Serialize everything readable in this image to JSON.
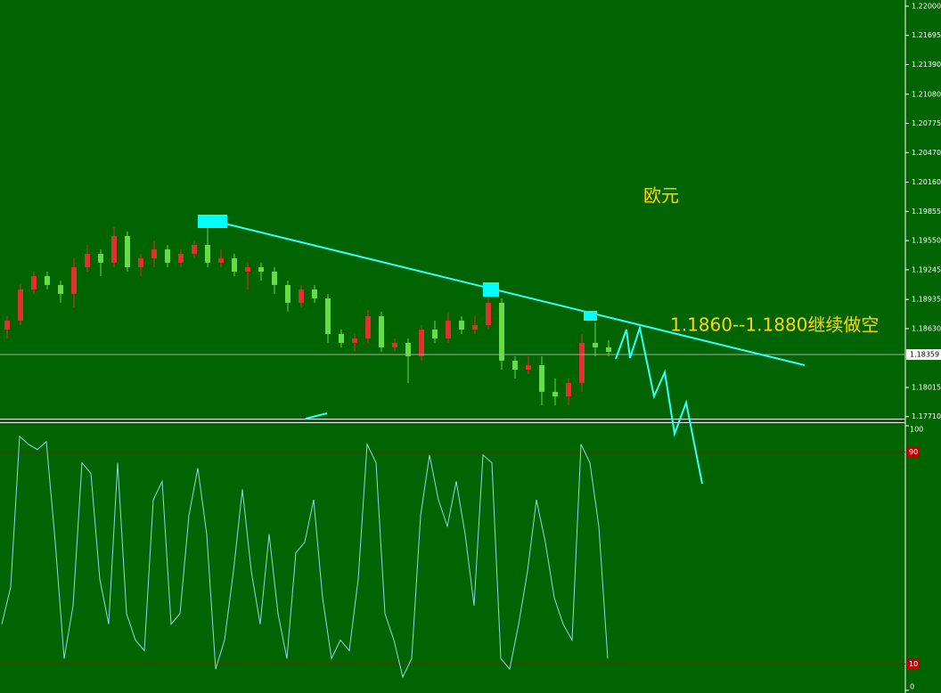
{
  "chart_data": [
    {
      "type": "candlestick",
      "annotations": [
        "欧元",
        "1.1860--1.1880继续做空"
      ],
      "up_color": "#e03030",
      "down_color": "#66dd44",
      "open": [
        1.1862,
        1.18714,
        1.19039,
        1.19179,
        1.19086,
        1.18993,
        1.19272,
        1.19412,
        1.19319,
        1.19598,
        1.19272,
        1.19365,
        1.19458,
        1.19319,
        1.19412,
        1.19505,
        1.19319,
        1.19365,
        1.19225,
        1.19272,
        1.19225,
        1.19086,
        1.189,
        1.19039,
        1.18946,
        1.18574,
        1.18481,
        1.18527,
        1.1876,
        1.18434,
        1.18481,
        1.18341,
        1.1862,
        1.18527,
        1.18714,
        1.1862,
        1.18667,
        1.189,
        1.18295,
        1.18201,
        1.18248,
        1.17969,
        1.17922,
        1.18062,
        1.18481,
        1.18434
      ],
      "high": [
        1.1876,
        1.19104,
        1.19225,
        1.19225,
        1.19132,
        1.19365,
        1.19505,
        1.19458,
        1.19691,
        1.19645,
        1.19412,
        1.19551,
        1.19505,
        1.19458,
        1.19551,
        1.19738,
        1.19458,
        1.19412,
        1.19319,
        1.19319,
        1.19272,
        1.19132,
        1.19086,
        1.19086,
        1.18993,
        1.1862,
        1.18574,
        1.18826,
        1.18807,
        1.18527,
        1.18527,
        1.18667,
        1.18714,
        1.18807,
        1.1876,
        1.1876,
        1.18946,
        1.18946,
        1.18341,
        1.18341,
        1.18341,
        1.18108,
        1.18108,
        1.18574,
        1.18695,
        1.18509
      ],
      "low": [
        1.18527,
        1.18667,
        1.18993,
        1.19039,
        1.189,
        1.18853,
        1.19225,
        1.19179,
        1.19272,
        1.19225,
        1.19179,
        1.19272,
        1.19272,
        1.19272,
        1.19365,
        1.19272,
        1.19272,
        1.19179,
        1.19039,
        1.19132,
        1.18993,
        1.18807,
        1.18853,
        1.189,
        1.18481,
        1.18434,
        1.18388,
        1.18481,
        1.18388,
        1.18388,
        1.18062,
        1.18295,
        1.18481,
        1.18481,
        1.18574,
        1.18574,
        1.1862,
        1.18201,
        1.18108,
        1.18155,
        1.17829,
        1.17829,
        1.17829,
        1.17969,
        1.18341,
        1.18341
      ],
      "close": [
        1.18714,
        1.19039,
        1.19179,
        1.19086,
        1.18993,
        1.19272,
        1.19412,
        1.19319,
        1.19598,
        1.19272,
        1.19365,
        1.19458,
        1.19319,
        1.19412,
        1.19505,
        1.19319,
        1.19365,
        1.19225,
        1.19272,
        1.19225,
        1.19086,
        1.189,
        1.19039,
        1.18946,
        1.18574,
        1.18481,
        1.18527,
        1.1876,
        1.18434,
        1.18481,
        1.18341,
        1.1862,
        1.18527,
        1.18714,
        1.1862,
        1.18667,
        1.189,
        1.18295,
        1.18201,
        1.18248,
        1.17969,
        1.17922,
        1.18062,
        1.18481,
        1.18434,
        1.18388
      ],
      "current_price": 1.18359,
      "ylim": [
        1.17689,
        1.22065
      ],
      "yticks": [
        {
          "value": 1.22,
          "label": "1.22000"
        },
        1.21695,
        {
          "value": 1.2139,
          "label": "1.21390"
        },
        {
          "value": 1.2108,
          "label": "1.21080"
        },
        1.20775,
        {
          "value": 1.2047,
          "label": "1.20470"
        },
        {
          "value": 1.2016,
          "label": "1.20160"
        },
        1.19855,
        {
          "value": 1.1955,
          "label": "1.19550"
        },
        1.19245,
        1.18935,
        {
          "value": 1.1863,
          "label": "1.18630"
        },
        1.18015,
        {
          "value": 1.1771,
          "label": "1.17710"
        }
      ]
    },
    {
      "type": "line",
      "color": "#8fd8e8",
      "values": [
        25,
        39,
        96,
        93,
        91,
        94,
        56,
        12,
        32,
        86,
        82,
        42,
        25,
        86,
        29,
        19,
        15,
        72,
        79,
        25,
        29,
        66,
        84,
        59,
        8,
        19,
        45,
        76,
        45,
        25,
        59,
        29,
        12,
        52,
        56,
        72,
        35,
        12,
        19,
        15,
        42,
        93,
        86,
        29,
        19,
        5,
        12,
        66,
        89,
        72,
        62,
        79,
        59,
        32,
        89,
        86,
        12,
        8,
        25,
        45,
        72,
        56,
        35,
        25,
        19,
        93,
        86,
        62,
        12
      ],
      "ylim": [
        0,
        100
      ],
      "yticks": [
        0,
        100
      ],
      "levels": [
        90,
        10
      ],
      "level_color": "#c00000"
    }
  ]
}
